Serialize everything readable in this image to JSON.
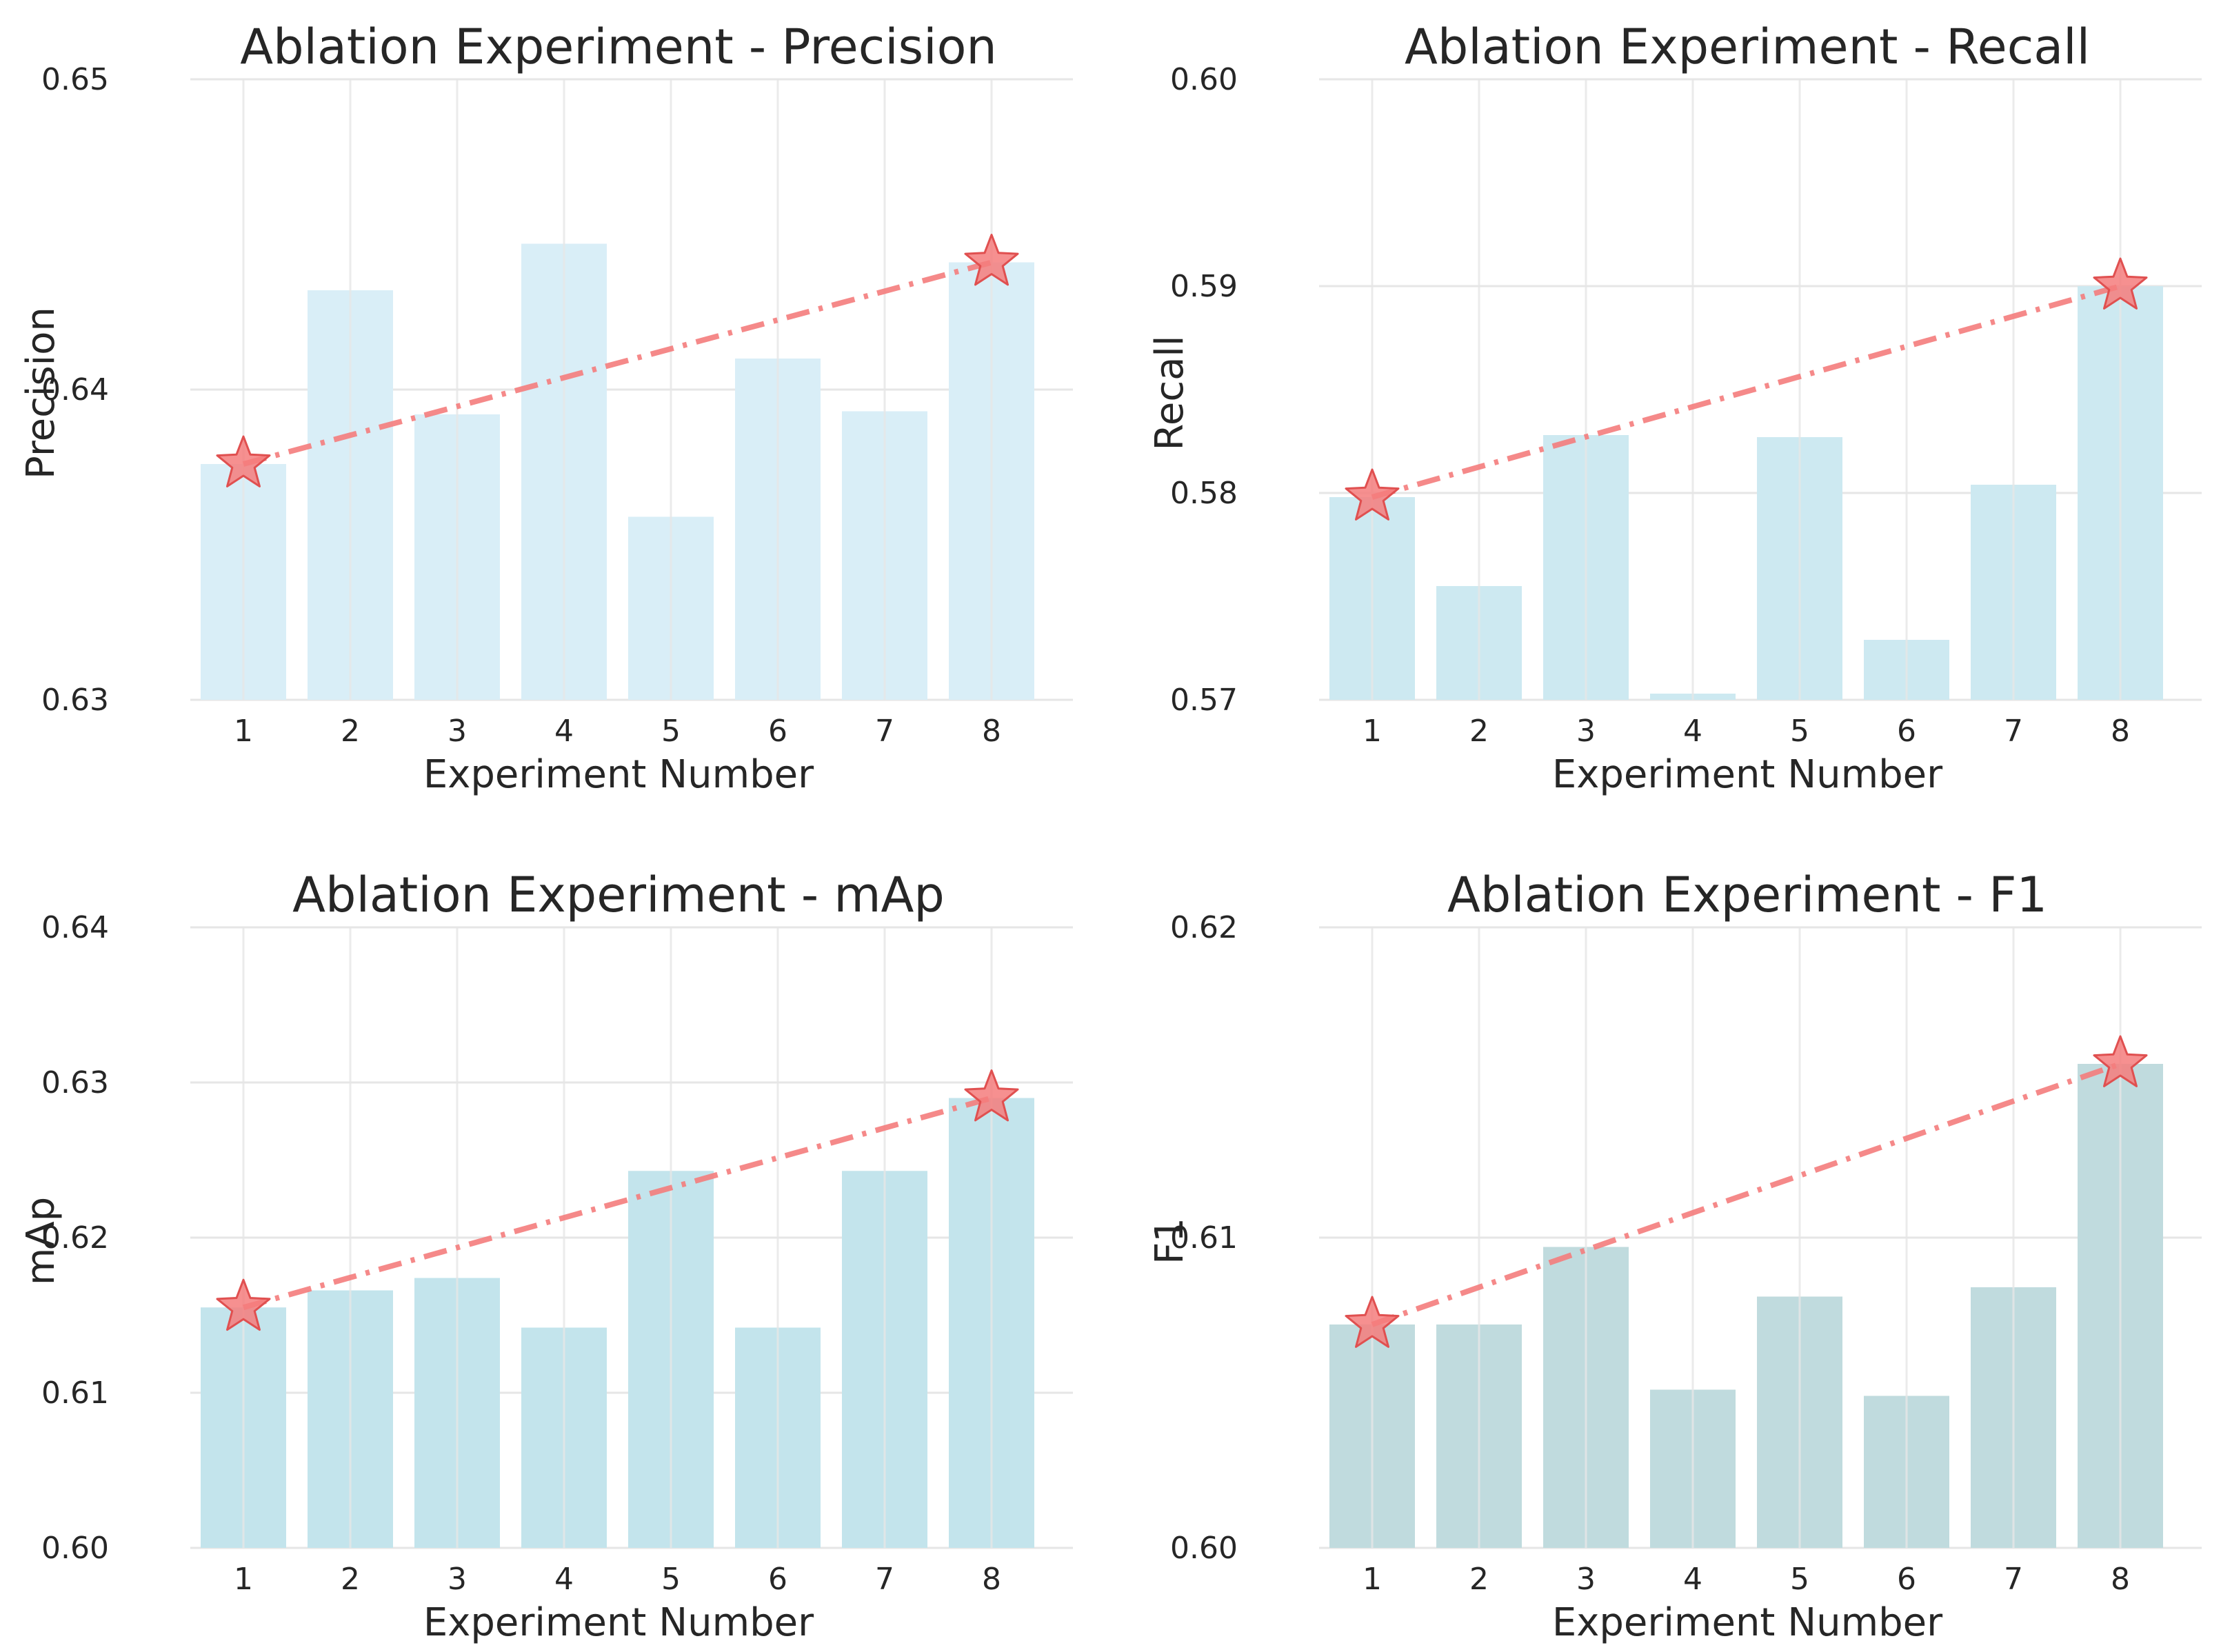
{
  "chart_data": [
    {
      "type": "bar",
      "title": "Ablation Experiment - Precision",
      "xlabel": "Experiment Number",
      "ylabel": "Precision",
      "categories": [
        "1",
        "2",
        "3",
        "4",
        "5",
        "6",
        "7",
        "8"
      ],
      "values": [
        0.6376,
        0.6432,
        0.6392,
        0.6447,
        0.6359,
        0.641,
        0.6393,
        0.6441
      ],
      "ylim": [
        0.63,
        0.65
      ],
      "yticks": [
        "0.63",
        "0.64",
        "0.65"
      ],
      "ytick_values": [
        0.63,
        0.64,
        0.65
      ],
      "bar_color": "#d9eef7",
      "trend": {
        "from_index": 0,
        "to_index": 7,
        "start_value": 0.6376,
        "end_value": 0.6441,
        "color": "#f47c7c",
        "marker": "star"
      },
      "grid": true
    },
    {
      "type": "bar",
      "title": "Ablation Experiment - Recall",
      "xlabel": "Experiment Number",
      "ylabel": "Recall",
      "categories": [
        "1",
        "2",
        "3",
        "4",
        "5",
        "6",
        "7",
        "8"
      ],
      "values": [
        0.5798,
        0.5755,
        0.5828,
        0.5703,
        0.5827,
        0.5729,
        0.5804,
        0.59
      ],
      "ylim": [
        0.57,
        0.6
      ],
      "yticks": [
        "0.57",
        "0.58",
        "0.59",
        "0.60"
      ],
      "ytick_values": [
        0.57,
        0.58,
        0.59,
        0.6
      ],
      "bar_color": "#cde9f1",
      "trend": {
        "from_index": 0,
        "to_index": 7,
        "start_value": 0.5798,
        "end_value": 0.59,
        "color": "#f47c7c",
        "marker": "star"
      },
      "grid": true
    },
    {
      "type": "bar",
      "title": "Ablation Experiment - mAp",
      "xlabel": "Experiment Number",
      "ylabel": "mAp",
      "categories": [
        "1",
        "2",
        "3",
        "4",
        "5",
        "6",
        "7",
        "8"
      ],
      "values": [
        0.6155,
        0.6166,
        0.6174,
        0.6142,
        0.6243,
        0.6142,
        0.6243,
        0.629
      ],
      "ylim": [
        0.6,
        0.64
      ],
      "yticks": [
        "0.60",
        "0.61",
        "0.62",
        "0.63",
        "0.64"
      ],
      "ytick_values": [
        0.6,
        0.61,
        0.62,
        0.63,
        0.64
      ],
      "bar_color": "#c3e4ec",
      "trend": {
        "from_index": 0,
        "to_index": 7,
        "start_value": 0.6155,
        "end_value": 0.629,
        "color": "#f47c7c",
        "marker": "star"
      },
      "grid": true
    },
    {
      "type": "bar",
      "title": "Ablation Experiment - F1",
      "xlabel": "Experiment Number",
      "ylabel": "F1",
      "categories": [
        "1",
        "2",
        "3",
        "4",
        "5",
        "6",
        "7",
        "8"
      ],
      "values": [
        0.6072,
        0.6072,
        0.6097,
        0.6051,
        0.6081,
        0.6049,
        0.6084,
        0.6156
      ],
      "ylim": [
        0.6,
        0.62
      ],
      "yticks": [
        "0.60",
        "0.61",
        "0.62"
      ],
      "ytick_values": [
        0.6,
        0.61,
        0.62
      ],
      "bar_color": "#c0dbde",
      "trend": {
        "from_index": 0,
        "to_index": 7,
        "start_value": 0.6072,
        "end_value": 0.6156,
        "color": "#f47c7c",
        "marker": "star"
      },
      "grid": true
    }
  ]
}
